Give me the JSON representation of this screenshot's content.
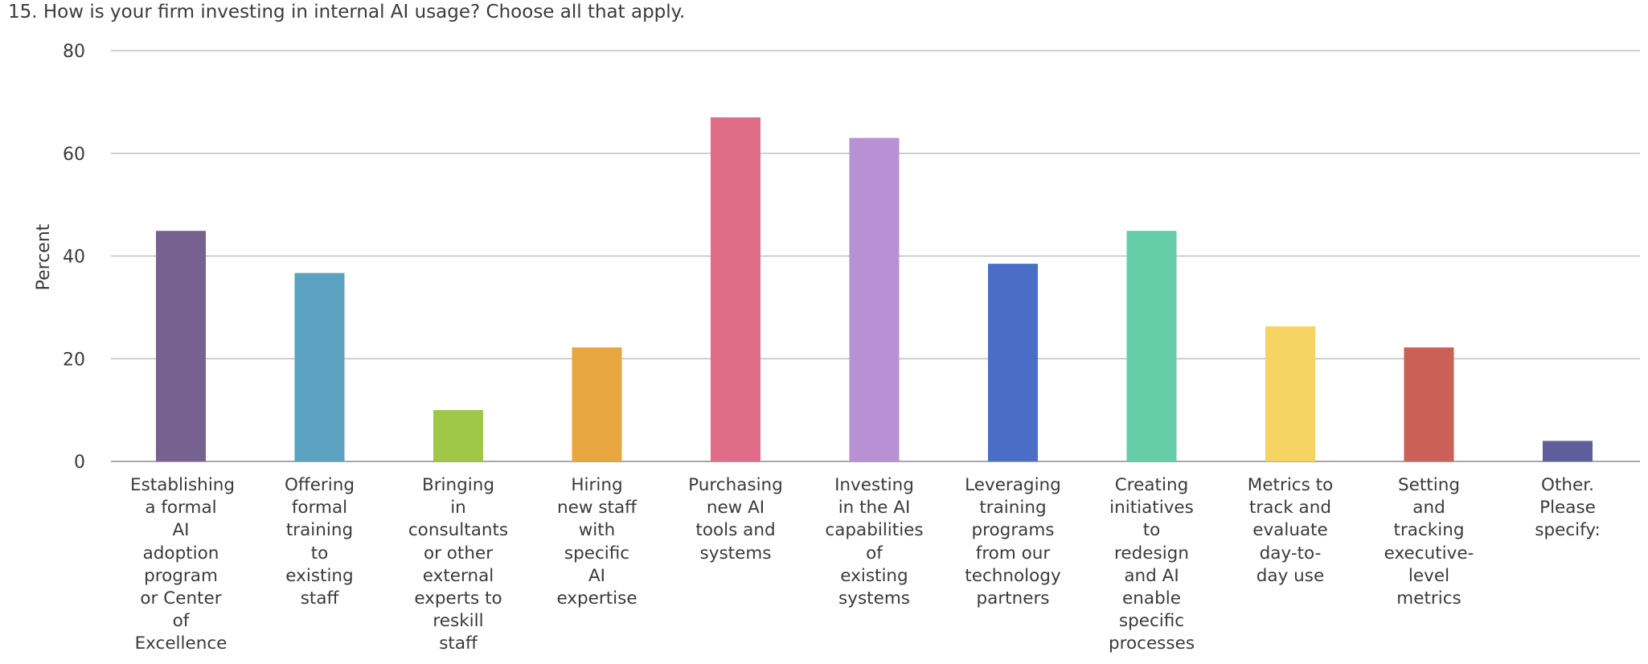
{
  "chart_data": {
    "type": "bar",
    "title": "15. How is your firm investing in internal AI usage? Choose all that apply.",
    "ylabel": "Percent",
    "xlabel": "",
    "ylim": [
      0,
      80
    ],
    "yticks": [
      0,
      20,
      40,
      60,
      80
    ],
    "grid": true,
    "categories": [
      "Establishing a formal AI adoption program or Center of Excellence",
      "Offering formal training to existing staff",
      "Bringing in consultants or other external experts to reskill staff",
      "Hiring new staff with specific AI expertise",
      "Purchasing new AI tools and systems",
      "Investing in the AI capabilities of existing systems",
      "Leveraging training programs from our technology partners",
      "Creating initiatives to redesign and AI enable specific processes",
      "Metrics to track and evaluate day-to-day use",
      "Setting and tracking executive-level metrics",
      "Other. Please specify:"
    ],
    "category_lines": [
      [
        "Establishing",
        "a formal",
        "AI",
        "adoption",
        "program",
        "or Center",
        "of",
        "Excellence"
      ],
      [
        "Offering",
        "formal",
        "training",
        "to",
        "existing",
        "staff"
      ],
      [
        "Bringing",
        "in",
        "consultants",
        "or other",
        "external",
        "experts to",
        "reskill",
        "staff"
      ],
      [
        "Hiring",
        "new staff",
        "with",
        "specific",
        "AI",
        "expertise"
      ],
      [
        "Purchasing",
        "new AI",
        "tools and",
        "systems"
      ],
      [
        "Investing",
        "in the AI",
        "capabilities",
        "of",
        "existing",
        "systems"
      ],
      [
        "Leveraging",
        "training",
        "programs",
        "from our",
        "technology",
        "partners"
      ],
      [
        "Creating",
        "initiatives",
        "to",
        "redesign",
        "and AI",
        "enable",
        "specific",
        "processes"
      ],
      [
        "Metrics to",
        "track and",
        "evaluate",
        "day-to-",
        "day use"
      ],
      [
        "Setting",
        "and",
        "tracking",
        "executive-",
        "level",
        "metrics"
      ],
      [
        "Other.",
        "Please",
        "specify:"
      ]
    ],
    "values": [
      44.9,
      36.7,
      10.0,
      22.2,
      67.0,
      63.0,
      38.5,
      44.9,
      26.3,
      22.2,
      4.0
    ],
    "colors": [
      "#77618e",
      "#5ba1c0",
      "#a1c748",
      "#e8a640",
      "#e06c87",
      "#b890d4",
      "#4a6ec8",
      "#65cda7",
      "#f5d463",
      "#ca6057",
      "#5e5e9a"
    ],
    "gridline_color": "#b4b4b4",
    "axis_color": "#a8a8a8"
  }
}
